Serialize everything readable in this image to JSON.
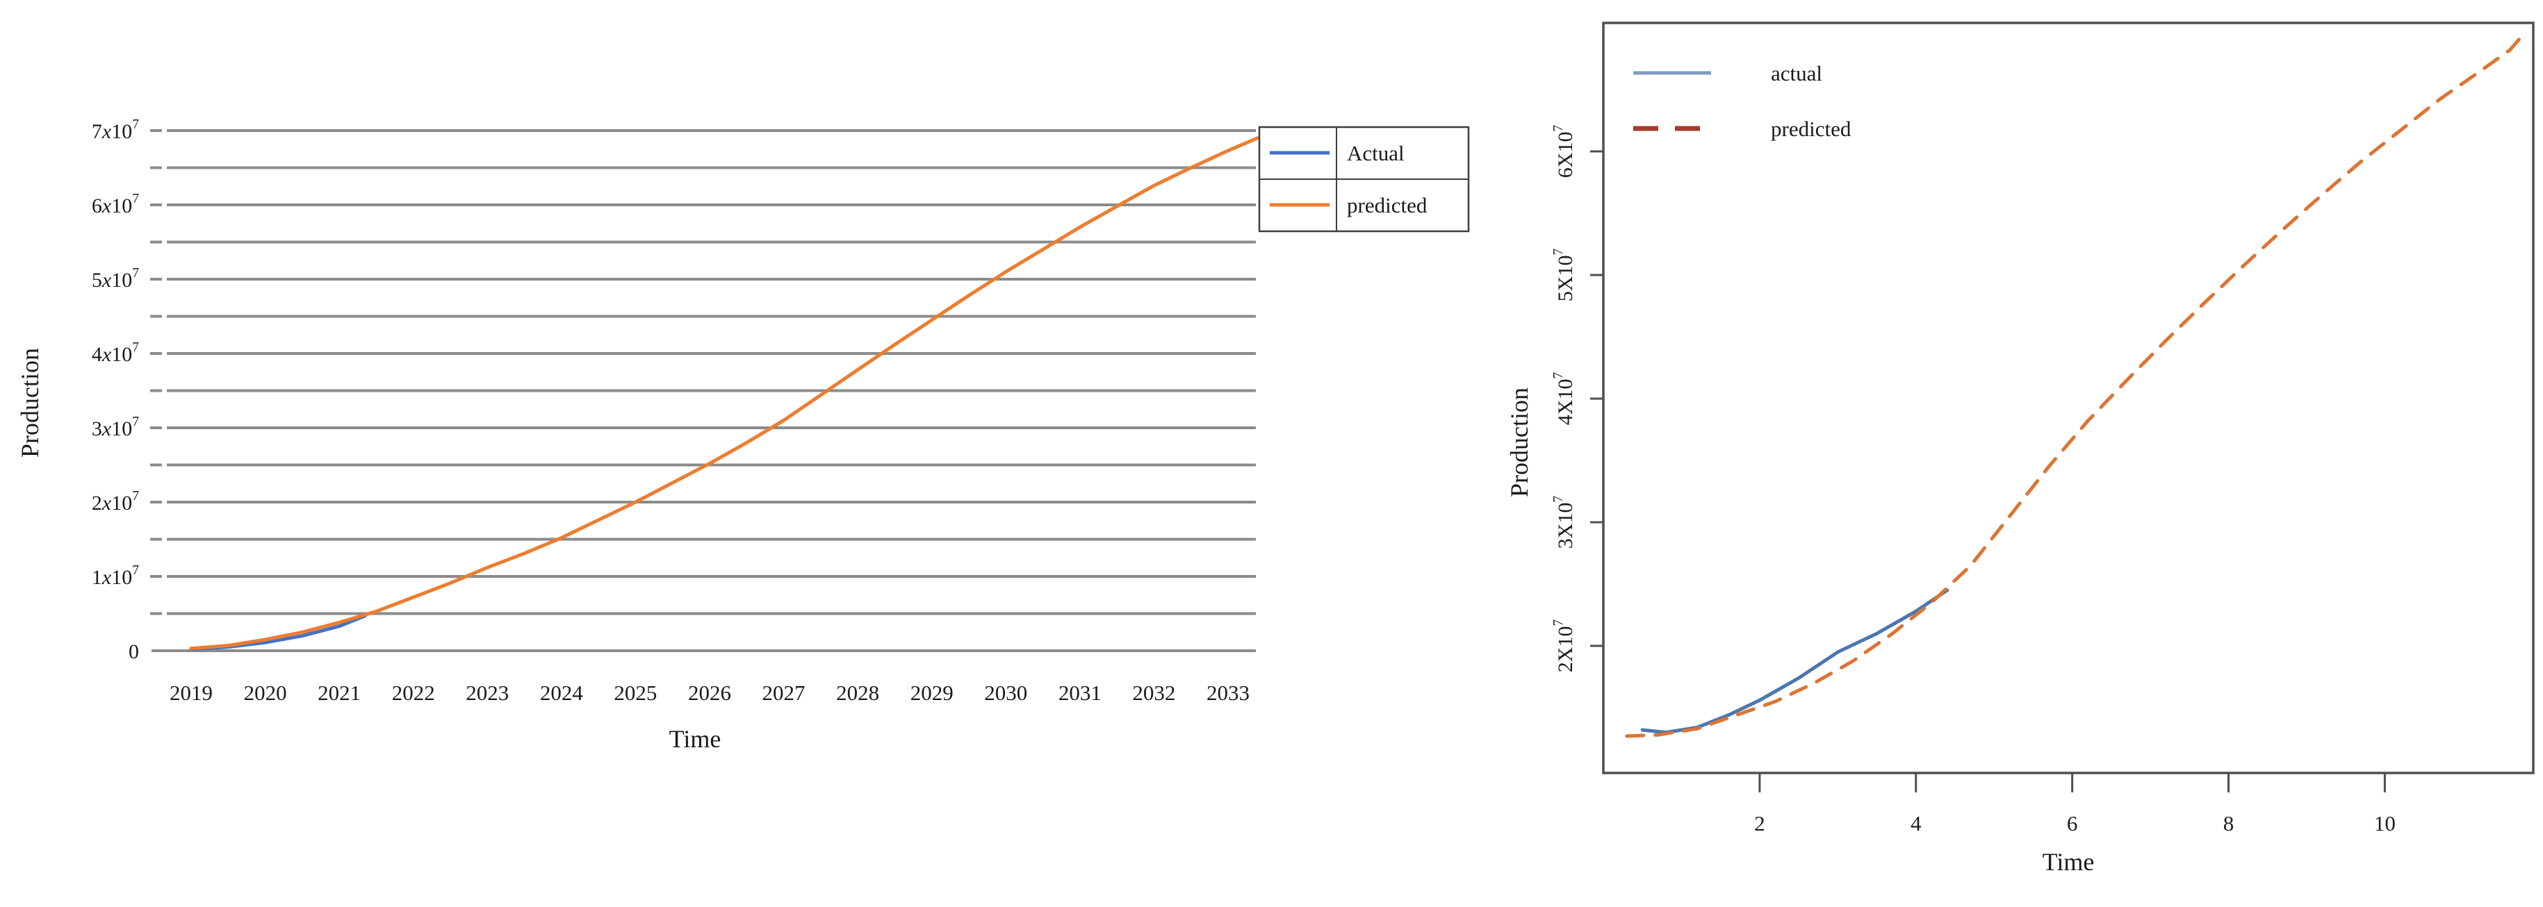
{
  "page": {
    "background": "#ffffff"
  },
  "chart_data": [
    {
      "id": "left",
      "type": "line",
      "title": "",
      "xlabel": "Time",
      "ylabel": "Production",
      "xlim": [
        2018.8,
        2033.6
      ],
      "ylim": [
        0,
        73000000
      ],
      "grid": "horizontal",
      "gridline_step": 5000000,
      "gridline_color": "#8b8b8b",
      "x_ticks": {
        "values": [
          2019,
          2020,
          2021,
          2022,
          2023,
          2024,
          2025,
          2026,
          2027,
          2028,
          2029,
          2030,
          2031,
          2032,
          2033
        ],
        "labels": [
          "2019",
          "2020",
          "2021",
          "2022",
          "2023",
          "2024",
          "2025",
          "2026",
          "2027",
          "2028",
          "2029",
          "2030",
          "2031",
          "2032",
          "2033"
        ]
      },
      "y_ticks": {
        "values": [
          0,
          10000000,
          20000000,
          30000000,
          40000000,
          50000000,
          60000000,
          70000000
        ],
        "labels": [
          "0",
          "1x10^7",
          "2x10^7",
          "3x10^7",
          "4x10^7",
          "5x10^7",
          "6x10^7",
          "7x10^7"
        ]
      },
      "legend": {
        "position": "top-right",
        "bordered": true,
        "entries": [
          {
            "label": "Actual",
            "color": "#4472c4",
            "style": "solid"
          },
          {
            "label": "predicted",
            "color": "#ed7d31",
            "style": "solid"
          }
        ]
      },
      "series": [
        {
          "name": "Actual",
          "color": "#4472c4",
          "style": "solid",
          "points": [
            [
              2019,
              200000
            ],
            [
              2019.5,
              500000
            ],
            [
              2020,
              1100000
            ],
            [
              2020.5,
              2000000
            ],
            [
              2021,
              3300000
            ],
            [
              2021.35,
              4700000
            ]
          ]
        },
        {
          "name": "predicted",
          "color": "#ed7d31",
          "style": "solid",
          "points": [
            [
              2019,
              300000
            ],
            [
              2019.5,
              700000
            ],
            [
              2020,
              1500000
            ],
            [
              2020.5,
              2500000
            ],
            [
              2021,
              3800000
            ],
            [
              2021.5,
              5300000
            ],
            [
              2022,
              7200000
            ],
            [
              2022.5,
              9100000
            ],
            [
              2023,
              11200000
            ],
            [
              2023.5,
              13100000
            ],
            [
              2024,
              15200000
            ],
            [
              2024.5,
              17600000
            ],
            [
              2025,
              20000000
            ],
            [
              2025.5,
              22600000
            ],
            [
              2026,
              25200000
            ],
            [
              2026.5,
              28000000
            ],
            [
              2027,
              31000000
            ],
            [
              2027.5,
              34400000
            ],
            [
              2028,
              37800000
            ],
            [
              2028.5,
              41200000
            ],
            [
              2029,
              44500000
            ],
            [
              2029.5,
              47800000
            ],
            [
              2030,
              51000000
            ],
            [
              2030.5,
              54000000
            ],
            [
              2031,
              57000000
            ],
            [
              2031.5,
              59800000
            ],
            [
              2032,
              62600000
            ],
            [
              2032.5,
              65000000
            ],
            [
              2033,
              67300000
            ],
            [
              2033.4,
              69000000
            ]
          ]
        }
      ]
    },
    {
      "id": "right",
      "type": "line",
      "title": "",
      "xlabel": "Time",
      "ylabel": "Production",
      "xlim": [
        0,
        11.9
      ],
      "ylim": [
        9700000,
        70500000
      ],
      "grid": "off",
      "boxed": true,
      "x_ticks": {
        "values": [
          2,
          4,
          6,
          8,
          10
        ],
        "labels": [
          "2",
          "4",
          "6",
          "8",
          "10"
        ]
      },
      "y_ticks": {
        "values": [
          20000000,
          30000000,
          40000000,
          50000000,
          60000000
        ],
        "labels": [
          "2X10^7",
          "3X10^7",
          "4X10^7",
          "5X10^7",
          "6X10^7"
        ]
      },
      "legend": {
        "position": "top-left",
        "bordered": false,
        "entries": [
          {
            "label": "actual",
            "color": "#7f9dc1",
            "style": "solid"
          },
          {
            "label": "predicted",
            "color": "#a63a2e",
            "style": "dashed"
          }
        ]
      },
      "series": [
        {
          "name": "actual",
          "color": "#4b76b0",
          "style": "solid",
          "points": [
            [
              0.5,
              13200000
            ],
            [
              0.8,
              13000000
            ],
            [
              1.2,
              13400000
            ],
            [
              1.6,
              14400000
            ],
            [
              2.0,
              15600000
            ],
            [
              2.5,
              17400000
            ],
            [
              3.0,
              19500000
            ],
            [
              3.5,
              21000000
            ],
            [
              4.0,
              22800000
            ],
            [
              4.4,
              24500000
            ]
          ]
        },
        {
          "name": "predicted",
          "color": "#dc7434",
          "style": "dashed",
          "points": [
            [
              0.3,
              12700000
            ],
            [
              0.7,
              12800000
            ],
            [
              1.2,
              13300000
            ],
            [
              1.7,
              14400000
            ],
            [
              2.2,
              15500000
            ],
            [
              2.7,
              17000000
            ],
            [
              3.2,
              18800000
            ],
            [
              3.7,
              21000000
            ],
            [
              4.2,
              23500000
            ],
            [
              4.7,
              26500000
            ],
            [
              5.2,
              30500000
            ],
            [
              5.7,
              34500000
            ],
            [
              6.2,
              38200000
            ],
            [
              6.7,
              41500000
            ],
            [
              7.2,
              44700000
            ],
            [
              7.7,
              47800000
            ],
            [
              8.2,
              50800000
            ],
            [
              8.7,
              53700000
            ],
            [
              9.2,
              56500000
            ],
            [
              9.7,
              59200000
            ],
            [
              10.2,
              61700000
            ],
            [
              10.7,
              64200000
            ],
            [
              11.2,
              66400000
            ],
            [
              11.6,
              68200000
            ],
            [
              11.75,
              69300000
            ]
          ]
        }
      ]
    }
  ]
}
